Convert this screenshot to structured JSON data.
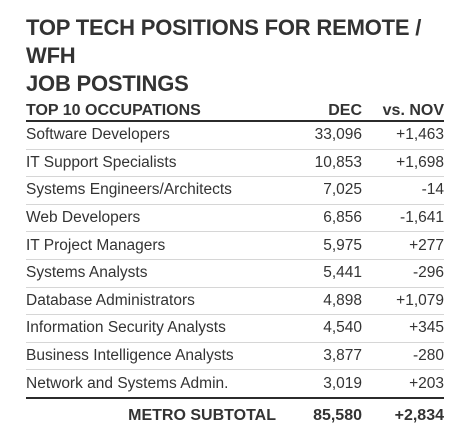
{
  "title": "TOP TECH POSITIONS FOR REMOTE / WFH\nJOB POSTINGS",
  "table": {
    "headers": {
      "occupation": "TOP 10 OCCUPATIONS",
      "dec": "DEC",
      "nov": "vs. NOV"
    },
    "rows": [
      {
        "name": "Software Developers",
        "dec": "33,096",
        "nov": "+1,463"
      },
      {
        "name": "IT Support Specialists",
        "dec": "10,853",
        "nov": "+1,698"
      },
      {
        "name": "Systems Engineers/Architects",
        "dec": "7,025",
        "nov": "-14"
      },
      {
        "name": "Web Developers",
        "dec": "6,856",
        "nov": "-1,641"
      },
      {
        "name": "IT Project Managers",
        "dec": "5,975",
        "nov": "+277"
      },
      {
        "name": "Systems Analysts",
        "dec": "5,441",
        "nov": "-296"
      },
      {
        "name": "Database Administrators",
        "dec": "4,898",
        "nov": "+1,079"
      },
      {
        "name": "Information Security Analysts",
        "dec": "4,540",
        "nov": "+345"
      },
      {
        "name": "Business Intelligence Analysts",
        "dec": "3,877",
        "nov": "-280"
      },
      {
        "name": "Network and Systems Admin.",
        "dec": "3,019",
        "nov": "+203"
      }
    ],
    "total": {
      "label": "METRO SUBTOTAL",
      "dec": "85,580",
      "nov": "+2,834"
    }
  }
}
